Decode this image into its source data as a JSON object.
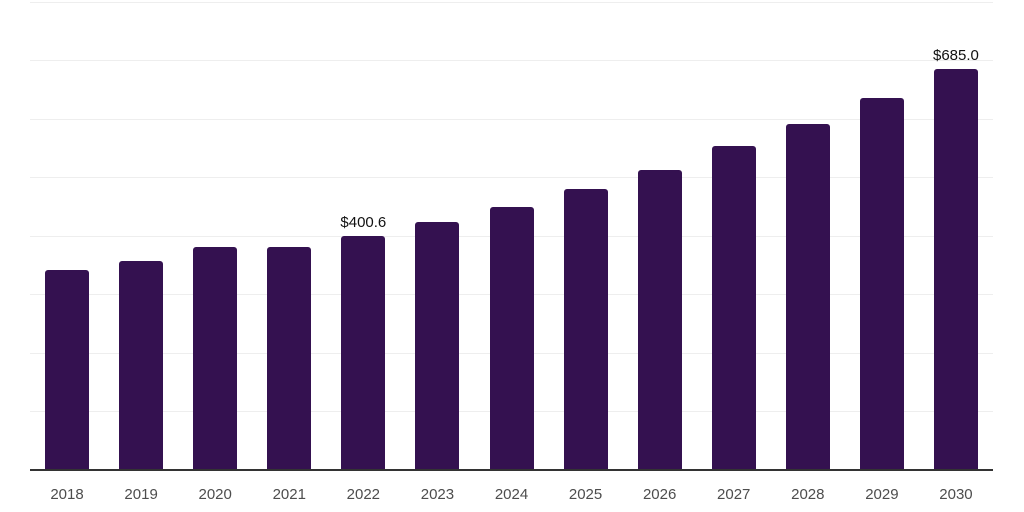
{
  "chart_data": {
    "type": "bar",
    "title": "",
    "xlabel": "",
    "ylabel": "",
    "categories": [
      "2018",
      "2019",
      "2020",
      "2021",
      "2022",
      "2023",
      "2024",
      "2025",
      "2026",
      "2027",
      "2028",
      "2029",
      "2030"
    ],
    "values": [
      342.6,
      358.0,
      381.8,
      381.8,
      400.6,
      424.4,
      449.1,
      480.6,
      513.0,
      553.8,
      591.3,
      635.6,
      685.0
    ],
    "data_labels": [
      {
        "index": 4,
        "text": "$400.6"
      },
      {
        "index": 12,
        "text": "$685.0"
      }
    ],
    "ylim": [
      0,
      800
    ],
    "grid_step": 100,
    "grid": "horizontal",
    "legend": false,
    "y_tick_labels_visible": false,
    "value_prefix": "$"
  },
  "style": {
    "bar_color": "#341150",
    "gridline_color": "#eeeeee",
    "axis_line_color": "#333333",
    "tick_label_color": "#4d4d4d",
    "data_label_color": "#111111",
    "background_color": "#ffffff"
  }
}
